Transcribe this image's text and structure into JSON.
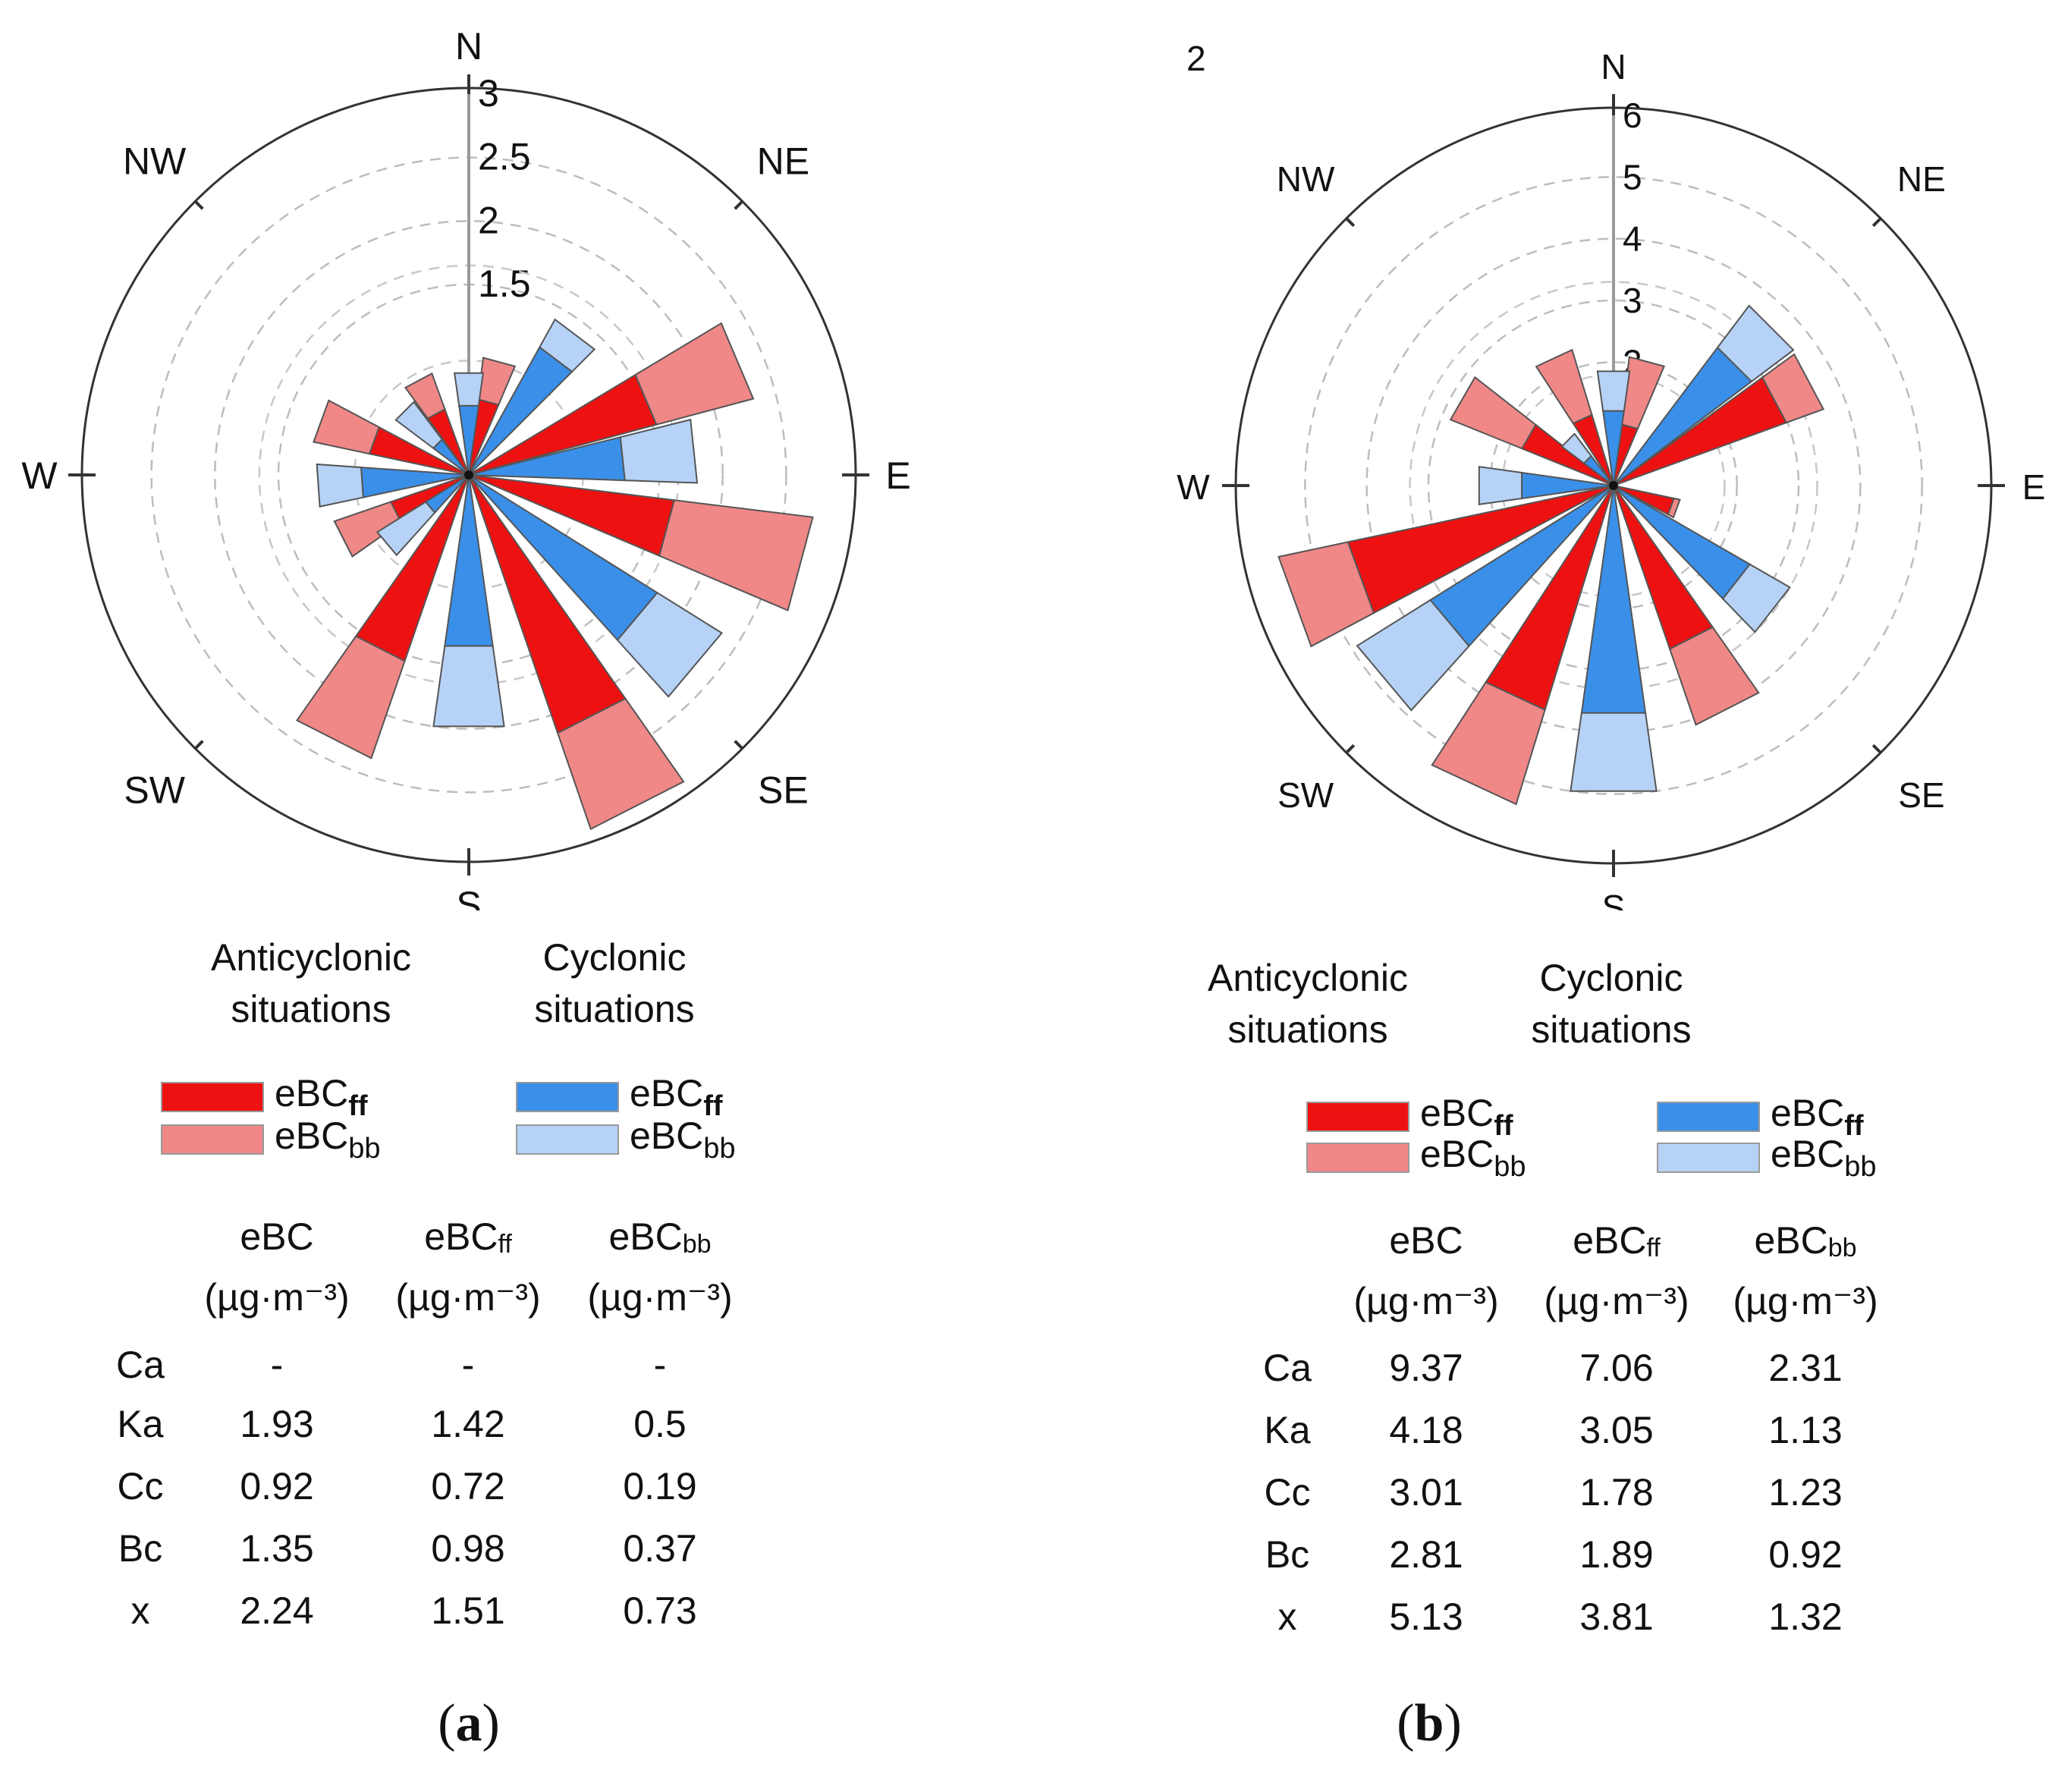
{
  "chart_data": [
    {
      "type": "rose",
      "panel_label": "a",
      "corner_label": "",
      "directions": [
        "N",
        "NE",
        "E",
        "SE",
        "S",
        "SW",
        "W",
        "NW"
      ],
      "radial_ticks": [
        "1.5",
        "2",
        "2.5",
        "3"
      ],
      "radial_axis_max": 3,
      "colors": {
        "anticyclonic_ff": "#ee1111",
        "anticyclonic_bb": "#f08888",
        "cyclonic_ff": "#3a8fe8",
        "cyclonic_bb": "#b6d3f7"
      },
      "series": [
        {
          "name": "Anticyclonic",
          "bins": [
            {
              "dir_deg": 15,
              "ff": 0.6,
              "bb": 0.93
            },
            {
              "dir_deg": 67,
              "ff": 1.53,
              "bb": 2.32
            },
            {
              "dir_deg": 105,
              "ff": 1.63,
              "bb": 2.73
            },
            {
              "dir_deg": 153,
              "ff": 2.15,
              "bb": 2.95
            },
            {
              "dir_deg": 207,
              "ff": 1.55,
              "bb": 2.36
            },
            {
              "dir_deg": 243,
              "ff": 0.65,
              "bb": 1.12
            },
            {
              "dir_deg": 290,
              "ff": 0.8,
              "bb": 1.25
            },
            {
              "dir_deg": 332,
              "ff": 0.55,
              "bb": 0.85
            }
          ]
        },
        {
          "name": "Cyclonic",
          "bins": [
            {
              "dir_deg": 0,
              "ff": 0.55,
              "bb": 0.81
            },
            {
              "dir_deg": 37,
              "ff": 1.15,
              "bb": 1.4
            },
            {
              "dir_deg": 84,
              "ff": 1.23,
              "bb": 1.8
            },
            {
              "dir_deg": 130,
              "ff": 1.75,
              "bb": 2.35
            },
            {
              "dir_deg": 180,
              "ff": 1.36,
              "bb": 2.0
            },
            {
              "dir_deg": 230,
              "ff": 0.4,
              "bb": 0.85
            },
            {
              "dir_deg": 266,
              "ff": 0.85,
              "bb": 1.2
            },
            {
              "dir_deg": 315,
              "ff": 0.35,
              "bb": 0.72
            }
          ]
        }
      ],
      "legend": {
        "anticyclonic_heading": [
          "Anticyclonic",
          "situations"
        ],
        "cyclonic_heading": [
          "Cyclonic",
          "situations"
        ],
        "ff_label": "eBC",
        "ff_sub": "ff",
        "bb_label": "eBC",
        "bb_sub": "bb"
      },
      "table": {
        "columns": [
          {
            "name": "eBC",
            "sub": "",
            "unit": "(µg·m⁻³)"
          },
          {
            "name": "eBC",
            "sub": "ff",
            "unit": "(µg·m⁻³)"
          },
          {
            "name": "eBC",
            "sub": "bb",
            "unit": "(µg·m⁻³)"
          }
        ],
        "rows": [
          {
            "label": "Ca",
            "values": [
              "-",
              "-",
              "-"
            ]
          },
          {
            "label": "Ka",
            "values": [
              "1.93",
              "1.42",
              "0.5"
            ]
          },
          {
            "label": "Cc",
            "values": [
              "0.92",
              "0.72",
              "0.19"
            ]
          },
          {
            "label": "Bc",
            "values": [
              "1.35",
              "0.98",
              "0.37"
            ]
          },
          {
            "label": "x",
            "values": [
              "2.24",
              "1.51",
              "0.73"
            ]
          }
        ]
      },
      "caption": "a"
    },
    {
      "type": "rose",
      "panel_label": "b",
      "corner_label": "2",
      "directions": [
        "N",
        "NE",
        "E",
        "SE",
        "S",
        "SW",
        "W",
        "NW"
      ],
      "radial_ticks": [
        "2",
        "3",
        "4",
        "5",
        "6"
      ],
      "radial_axis_max": 6,
      "colors": {
        "anticyclonic_ff": "#ee1111",
        "anticyclonic_bb": "#f08888",
        "cyclonic_ff": "#3a8fe8",
        "cyclonic_bb": "#b6d3f7"
      },
      "series": [
        {
          "name": "Anticyclonic",
          "bins": [
            {
              "dir_deg": 15,
              "ff": 1.0,
              "bb": 2.1
            },
            {
              "dir_deg": 62,
              "ff": 2.98,
              "bb": 3.62
            },
            {
              "dir_deg": 110,
              "ff": 1.0,
              "bb": 1.1
            },
            {
              "dir_deg": 153,
              "ff": 2.8,
              "bb": 4.1
            },
            {
              "dir_deg": 205,
              "ff": 3.8,
              "bb": 5.4
            },
            {
              "dir_deg": 250,
              "ff": 4.4,
              "bb": 5.55
            },
            {
              "dir_deg": 300,
              "ff": 1.6,
              "bb": 2.85
            },
            {
              "dir_deg": 335,
              "ff": 1.2,
              "bb": 2.3
            }
          ]
        },
        {
          "name": "Cyclonic",
          "bins": [
            {
              "dir_deg": 0,
              "ff": 1.22,
              "bb": 1.87
            },
            {
              "dir_deg": 45,
              "ff": 2.8,
              "bb": 3.65
            },
            {
              "dir_deg": 128,
              "ff": 2.55,
              "bb": 3.3
            },
            {
              "dir_deg": 180,
              "ff": 3.72,
              "bb": 5.0
            },
            {
              "dir_deg": 230,
              "ff": 3.5,
              "bb": 4.9
            },
            {
              "dir_deg": 270,
              "ff": 1.5,
              "bb": 2.2
            },
            {
              "dir_deg": 315,
              "ff": 0.6,
              "bb": 1.05
            }
          ]
        }
      ],
      "legend": {
        "anticyclonic_heading": [
          "Anticyclonic",
          "situations"
        ],
        "cyclonic_heading": [
          "Cyclonic",
          "situations"
        ],
        "ff_label": "eBC",
        "ff_sub": "ff",
        "bb_label": "eBC",
        "bb_sub": "bb"
      },
      "table": {
        "columns": [
          {
            "name": "eBC",
            "sub": "",
            "unit": "(µg·m⁻³)"
          },
          {
            "name": "eBC",
            "sub": "ff",
            "unit": "(µg·m⁻³)"
          },
          {
            "name": "eBC",
            "sub": "bb",
            "unit": "(µg·m⁻³)"
          }
        ],
        "rows": [
          {
            "label": "Ca",
            "values": [
              "9.37",
              "7.06",
              "2.31"
            ]
          },
          {
            "label": "Ka",
            "values": [
              "4.18",
              "3.05",
              "1.13"
            ]
          },
          {
            "label": "Cc",
            "values": [
              "3.01",
              "1.78",
              "1.23"
            ]
          },
          {
            "label": "Bc",
            "values": [
              "2.81",
              "1.89",
              "0.92"
            ]
          },
          {
            "label": "x",
            "values": [
              "5.13",
              "3.81",
              "1.32"
            ]
          }
        ]
      },
      "caption": "b"
    }
  ]
}
